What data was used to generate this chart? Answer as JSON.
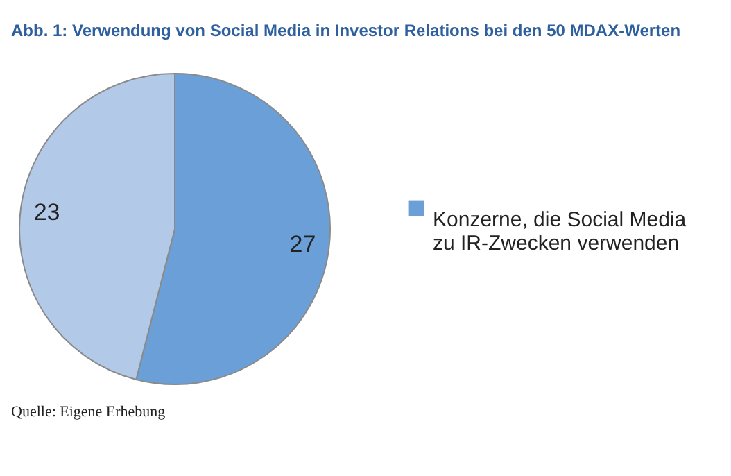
{
  "chart_data": {
    "type": "pie",
    "title": "Abb. 1: Verwendung von Social Media in Investor Relations bei den 50 MDAX-Werten",
    "categories": [
      "Konzerne, die Social Media\nzu IR-Zwecken verwenden",
      null
    ],
    "values": [
      27,
      23
    ],
    "colors": [
      "#6a9fd8",
      "#b3c9e8"
    ],
    "data_labels": true,
    "legend": "right",
    "annotations": [
      "Quelle: Eigene Erhebung"
    ]
  }
}
